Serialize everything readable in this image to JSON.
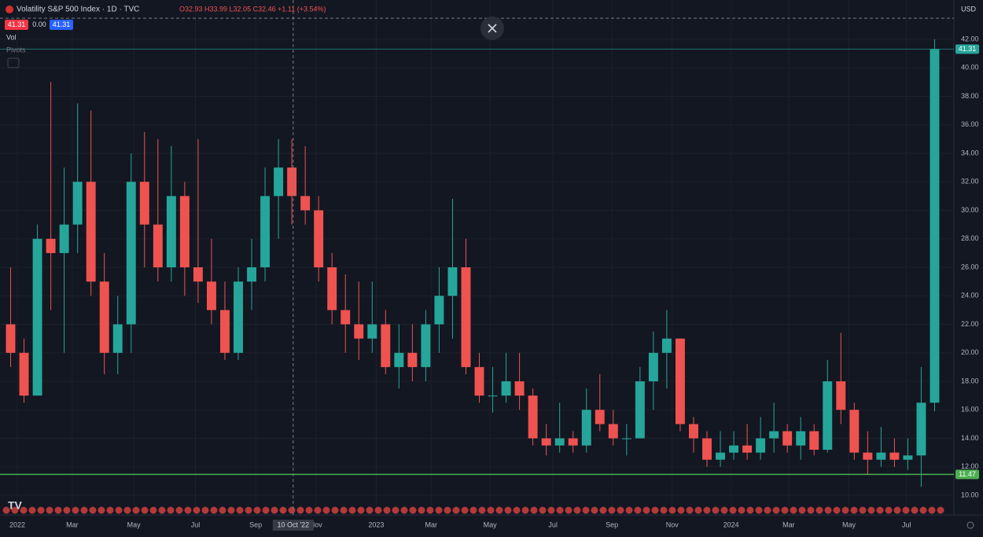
{
  "chart_data": {
    "type": "candlestick",
    "title": "Volatility S&P 500 Index · 1D · TVC",
    "ohlc_legend": "O32.93 H33.99 L32.05 C32.46 +1.11 (+3.54%)",
    "badges": [
      "41.31",
      "0.00",
      "41.31"
    ],
    "indicators": [
      "Vol",
      "Pivots"
    ],
    "currency": "USD",
    "crosshair_label": "10 Oct '22",
    "crosshair_x": 21.6,
    "crosshair_y": 43.48,
    "up_color": "#26a69a",
    "down_color": "#ef5350",
    "open": [
      22,
      20,
      17,
      28,
      27,
      29,
      32,
      25,
      20,
      22,
      32,
      29,
      26,
      31,
      26,
      25,
      23,
      20,
      25,
      26,
      31,
      33,
      31,
      30,
      26,
      23,
      22,
      21,
      22,
      19,
      20,
      19,
      22,
      24,
      26,
      19,
      17,
      17,
      18,
      17,
      14,
      13.5,
      14,
      13.5,
      16,
      15,
      14,
      14,
      18,
      20,
      21,
      15,
      14,
      12.5,
      13,
      13.5,
      13,
      14,
      14.5,
      13.5,
      14.5,
      13.2,
      18,
      16,
      13,
      12.5,
      13,
      12.5,
      12.8,
      16.5
    ],
    "high": [
      26,
      21,
      29,
      39,
      33,
      37.5,
      37,
      27,
      24,
      34,
      35.5,
      35,
      34.5,
      32,
      35,
      28,
      25,
      26,
      28,
      33,
      35,
      35,
      34.5,
      31,
      27,
      25.5,
      25,
      25,
      23,
      22,
      22,
      23,
      26,
      30.8,
      28,
      20,
      19,
      20,
      20,
      17.5,
      15,
      16.5,
      14.5,
      17.5,
      18.5,
      16,
      15,
      19,
      21.5,
      23,
      21,
      15.5,
      14.5,
      14.5,
      14.5,
      15,
      15.5,
      16.5,
      15,
      15.5,
      15,
      19.5,
      21.4,
      16.5,
      14.5,
      14.8,
      14,
      14,
      19,
      42
    ],
    "low": [
      19,
      16.5,
      17,
      23,
      20,
      27,
      24,
      18.5,
      18.5,
      20,
      26,
      25,
      25,
      24,
      23.5,
      22,
      19.5,
      19.5,
      23,
      25,
      28,
      29,
      29,
      25,
      22,
      20,
      19.5,
      20,
      18.5,
      17.5,
      18,
      18,
      20,
      21,
      18.5,
      16.5,
      15.8,
      16.5,
      16,
      13.5,
      12.8,
      13,
      13,
      13,
      14.5,
      13.5,
      12.8,
      14,
      16,
      17.5,
      14.5,
      13,
      12,
      12,
      12.5,
      12.5,
      12.5,
      13,
      13,
      12.5,
      12.8,
      13,
      15,
      12.5,
      11.5,
      12,
      12,
      11.8,
      10.6,
      15.9
    ],
    "close": [
      20,
      17,
      28,
      27,
      29,
      32,
      25,
      20,
      22,
      32,
      29,
      26,
      31,
      26,
      25,
      23,
      20,
      25,
      26,
      31,
      33,
      31,
      30,
      26,
      23,
      22,
      21,
      22,
      19,
      20,
      19,
      22,
      24,
      26,
      19,
      17,
      17,
      18,
      17,
      14,
      13.5,
      14,
      13.5,
      16,
      15,
      14,
      14,
      18,
      20,
      21,
      15,
      14,
      12.5,
      13,
      13.5,
      13,
      14,
      14.5,
      13.5,
      14.5,
      13.2,
      18,
      16,
      13,
      12.5,
      13,
      12.5,
      12.8,
      16.5,
      41.31
    ],
    "xlim": [
      0,
      70
    ],
    "xticks": [
      {
        "value": 1.0,
        "label": "2022"
      },
      {
        "value": 5.1,
        "label": "Mar"
      },
      {
        "value": 9.7,
        "label": "May"
      },
      {
        "value": 14.3,
        "label": "Jul"
      },
      {
        "value": 18.8,
        "label": "Sep"
      },
      {
        "value": 23.3,
        "label": "Nov"
      },
      {
        "value": 27.8,
        "label": "2023"
      },
      {
        "value": 31.9,
        "label": "Mar"
      },
      {
        "value": 36.3,
        "label": "May"
      },
      {
        "value": 41.0,
        "label": "Jul"
      },
      {
        "value": 45.4,
        "label": "Sep"
      },
      {
        "value": 49.9,
        "label": "Nov"
      },
      {
        "value": 54.3,
        "label": "2024"
      },
      {
        "value": 58.6,
        "label": "Mar"
      },
      {
        "value": 63.1,
        "label": "May"
      },
      {
        "value": 67.4,
        "label": "Jul"
      }
    ],
    "ylim": [
      9.45,
      44.48
    ],
    "yticks": [
      {
        "value": 10,
        "label": "10.00"
      },
      {
        "value": 12,
        "label": "12.00"
      },
      {
        "value": 14,
        "label": "14.00"
      },
      {
        "value": 16,
        "label": "16.00"
      },
      {
        "value": 18,
        "label": "18.00"
      },
      {
        "value": 20,
        "label": "20.00"
      },
      {
        "value": 22,
        "label": "22.00"
      },
      {
        "value": 24,
        "label": "24.00"
      },
      {
        "value": 26,
        "label": "26.00"
      },
      {
        "value": 28,
        "label": "28.00"
      },
      {
        "value": 30,
        "label": "30.00"
      },
      {
        "value": 32,
        "label": "32.00"
      },
      {
        "value": 34,
        "label": "34.00"
      },
      {
        "value": 36,
        "label": "36.00"
      },
      {
        "value": 38,
        "label": "38.00"
      },
      {
        "value": 40,
        "label": "40.00"
      },
      {
        "value": 42,
        "label": "42.00"
      }
    ],
    "price_lines": [
      41.31,
      11.47
    ],
    "grid": true
  }
}
